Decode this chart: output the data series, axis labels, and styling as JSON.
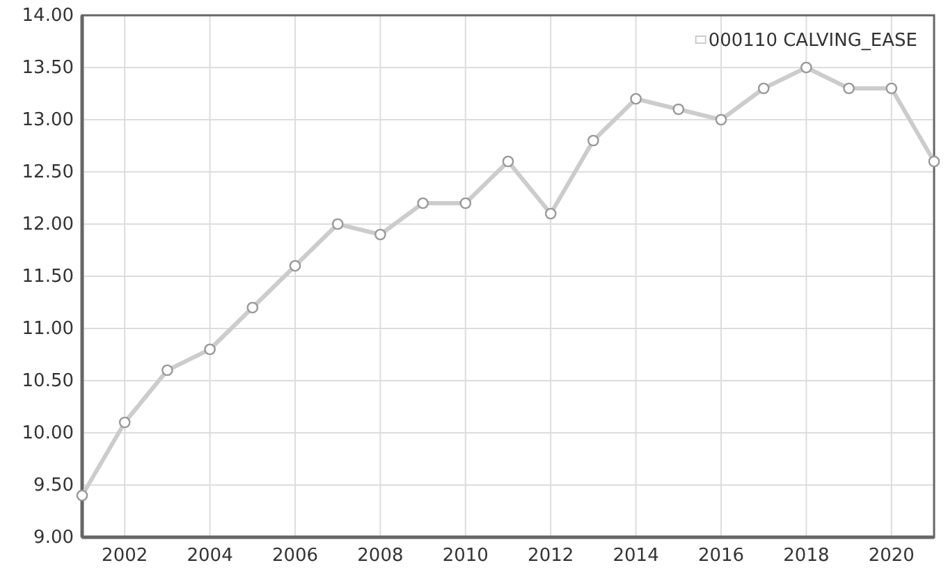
{
  "chart_data": {
    "type": "line",
    "x": [
      2001,
      2002,
      2003,
      2004,
      2005,
      2006,
      2007,
      2008,
      2009,
      2010,
      2011,
      2012,
      2013,
      2014,
      2015,
      2016,
      2017,
      2018,
      2019,
      2020,
      2021
    ],
    "series": [
      {
        "name": "000110 CALVING_EASE",
        "color": "#cccccc",
        "values": [
          9.4,
          10.1,
          10.6,
          10.8,
          11.2,
          11.6,
          12.0,
          11.9,
          12.2,
          12.2,
          12.6,
          12.1,
          12.8,
          13.2,
          13.1,
          13.0,
          13.3,
          13.5,
          13.3,
          13.3,
          12.6
        ]
      }
    ],
    "xlim": [
      2001,
      2021
    ],
    "xticks": [
      2002,
      2004,
      2006,
      2008,
      2010,
      2012,
      2014,
      2016,
      2018,
      2020
    ],
    "ylim": [
      9,
      14
    ],
    "yticks": [
      {
        "value": 9,
        "label": "9.00"
      },
      {
        "value": 9.5,
        "label": "9.50"
      },
      {
        "value": 10,
        "label": "10.00"
      },
      {
        "value": 10.5,
        "label": "10.50"
      },
      {
        "value": 11,
        "label": "11.00"
      },
      {
        "value": 11.5,
        "label": "11.50"
      },
      {
        "value": 12,
        "label": "12.00"
      },
      {
        "value": 12.5,
        "label": "12.50"
      },
      {
        "value": 13,
        "label": "13.00"
      },
      {
        "value": 13.5,
        "label": "13.50"
      },
      {
        "value": 14,
        "label": "14.00"
      }
    ],
    "grid": true,
    "legend": "top right",
    "marker": "circle",
    "line_style": "solid"
  }
}
